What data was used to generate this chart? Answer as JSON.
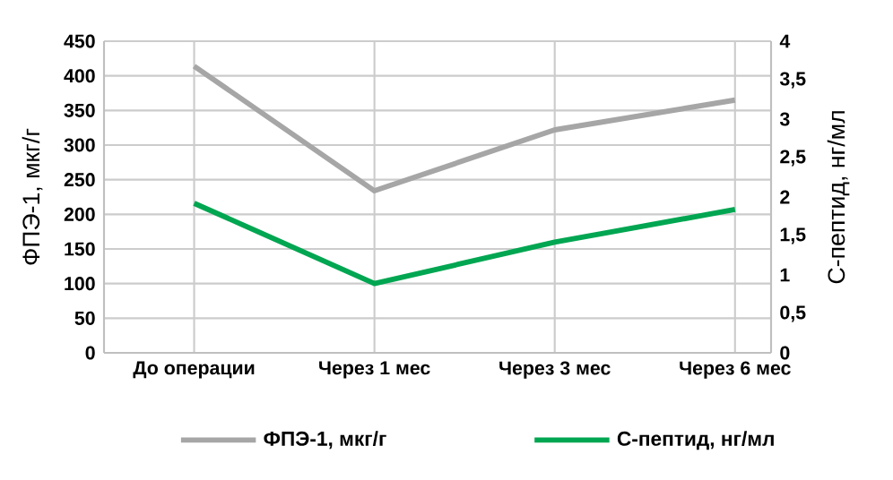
{
  "chart_data": {
    "type": "line",
    "categories": [
      "До операции",
      "Через 1 мес",
      "Через 3 мес",
      "Через 6 мес"
    ],
    "series": [
      {
        "name": "ФПЭ-1, мкг/г",
        "color": "#a6a6a6",
        "values": [
          414,
          234,
          322,
          365
        ],
        "axis": "y"
      },
      {
        "name": "С-пептид, нг/мл",
        "color": "#00a651",
        "values": [
          1.92,
          0.89,
          1.42,
          1.84
        ],
        "axis": "y2"
      }
    ],
    "ylabel": "ФПЭ-1, мкг/г",
    "y2label": "С-пептид, нг/мл",
    "ylim": [
      0,
      450
    ],
    "yticks": [
      0,
      50,
      100,
      150,
      200,
      250,
      300,
      350,
      400,
      450
    ],
    "y2lim": [
      0,
      4
    ],
    "y2ticks": [
      0,
      {
        "value": 0.5,
        "label": "0,5"
      },
      1,
      {
        "value": 1.5,
        "label": "1,5"
      },
      2,
      {
        "value": 2.5,
        "label": "2,5"
      },
      3,
      {
        "value": 3.5,
        "label": "3,5"
      },
      4
    ],
    "grid": true,
    "legend": "bottom",
    "marker": "none",
    "line_style": "solid"
  }
}
